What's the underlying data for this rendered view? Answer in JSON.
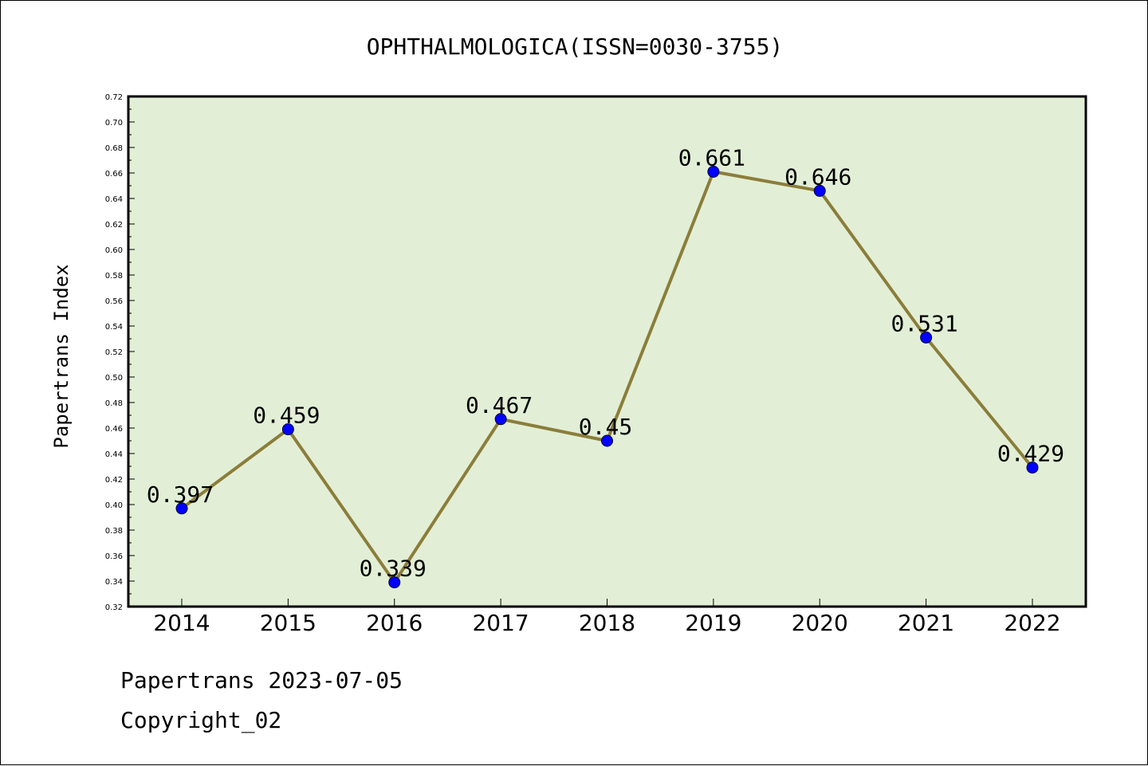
{
  "chart_data": {
    "type": "line",
    "title": "OPHTHALMOLOGICA(ISSN=0030-3755)",
    "xlabel": "",
    "ylabel": "Papertrans Index",
    "categories": [
      "2014",
      "2015",
      "2016",
      "2017",
      "2018",
      "2019",
      "2020",
      "2021",
      "2022"
    ],
    "series": [
      {
        "values": [
          0.397,
          0.459,
          0.339,
          0.467,
          0.45,
          0.661,
          0.646,
          0.531,
          0.429
        ],
        "labels": [
          "0.397",
          "0.459",
          "0.339",
          "0.467",
          "0.45",
          "0.661",
          "0.646",
          "0.531",
          "0.429"
        ]
      }
    ],
    "ylim": [
      0.32,
      0.72
    ],
    "yticks": [
      "0.32",
      "0.34",
      "0.36",
      "0.38",
      "0.40",
      "0.42",
      "0.44",
      "0.46",
      "0.48",
      "0.50",
      "0.52",
      "0.54",
      "0.56",
      "0.58",
      "0.60",
      "0.62",
      "0.64",
      "0.66",
      "0.68",
      "0.70",
      "0.72"
    ],
    "grid": false,
    "colors": {
      "plot_background": "#e2efd6",
      "line": "#8b7d3a",
      "marker": "#0000ff"
    }
  },
  "footer": {
    "date_line": "Papertrans 2023-07-05",
    "copyright": "Copyright_02"
  }
}
